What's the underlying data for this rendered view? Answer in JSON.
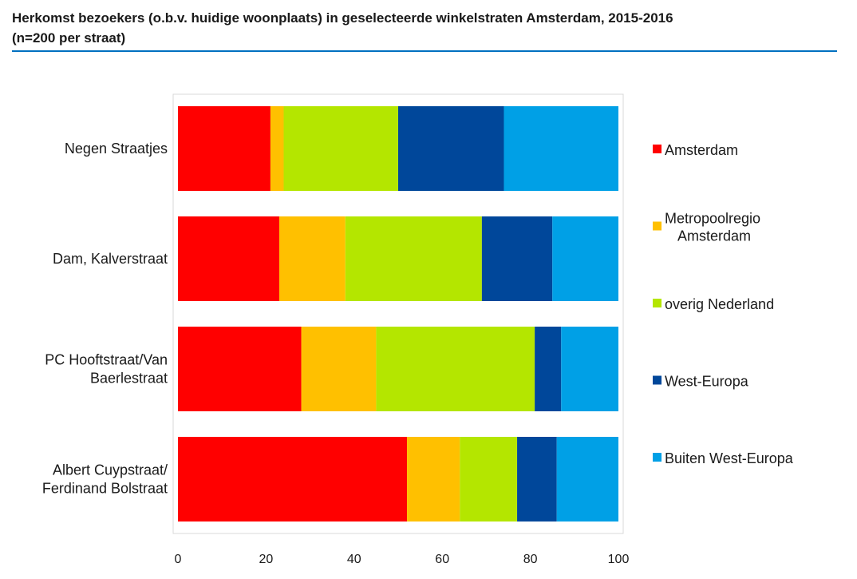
{
  "chart_data": {
    "type": "bar",
    "orientation": "horizontal",
    "stacked": true,
    "title": "Herkomst bezoekers (o.b.v. huidige woonplaats) in geselecteerde winkelstraten Amsterdam, 2015-2016",
    "subtitle": "(n=200 per straat)",
    "categories": [
      [
        "Negen Straatjes"
      ],
      [
        "Dam, Kalverstraat"
      ],
      [
        "PC Hooftstraat/Van",
        "Baerlestraat"
      ],
      [
        "Albert Cuypstraat/",
        "Ferdinand Bolstraat"
      ]
    ],
    "series": [
      {
        "name": [
          "Amsterdam"
        ],
        "color": "#ff0000",
        "values": [
          21,
          23,
          28,
          52
        ]
      },
      {
        "name": [
          "Metropoolregio",
          "Amsterdam"
        ],
        "color": "#ffc000",
        "values": [
          3,
          15,
          17,
          12
        ]
      },
      {
        "name": [
          "overig Nederland"
        ],
        "color": "#b4e600",
        "values": [
          26,
          31,
          36,
          13
        ]
      },
      {
        "name": [
          "West-Europa"
        ],
        "color": "#00479a",
        "values": [
          24,
          16,
          6,
          9
        ]
      },
      {
        "name": [
          "Buiten West-Europa"
        ],
        "color": "#00a0e6",
        "values": [
          26,
          15,
          13,
          14
        ]
      }
    ],
    "xlim": [
      0,
      100
    ],
    "xticks": [
      "0",
      "20",
      "40",
      "60",
      "80",
      "100"
    ],
    "xlabel": "",
    "ylabel": "",
    "legend_position": "right",
    "grid": false
  }
}
